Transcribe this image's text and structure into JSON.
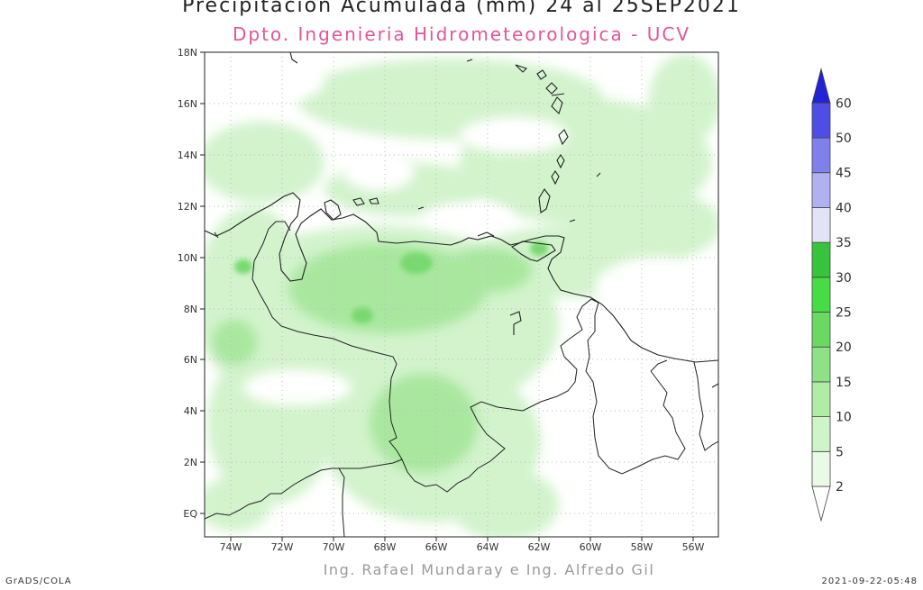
{
  "title": "Precipitacion Acumulada (mm) 24 al 25SEP2021",
  "subtitle": "Dpto. Ingenieria Hidrometeorologica - UCV",
  "credit": "Ing. Rafael Mundaray e Ing. Alfredo Gil",
  "footer": {
    "left": "GrADS/COLA",
    "right": "2021-09-22-05:48"
  },
  "map": {
    "lat_labels": [
      "18N",
      "16N",
      "14N",
      "12N",
      "10N",
      "8N",
      "6N",
      "4N",
      "2N",
      "EQ"
    ],
    "lon_labels": [
      "74W",
      "72W",
      "70W",
      "68W",
      "66W",
      "64W",
      "62W",
      "60W",
      "58W",
      "56W"
    ]
  },
  "colorbar": {
    "levels": [
      "2",
      "5",
      "10",
      "15",
      "20",
      "25",
      "30",
      "35",
      "40",
      "45",
      "50",
      "60"
    ],
    "colors": [
      "#ffffff",
      "#e9fbe6",
      "#cef5c7",
      "#b0eca6",
      "#8ee185",
      "#6ad962",
      "#45dc45",
      "#36c43d",
      "#e3e3f7",
      "#b1b1f1",
      "#8080ea",
      "#4e4ee6",
      "#2222d8"
    ]
  }
}
